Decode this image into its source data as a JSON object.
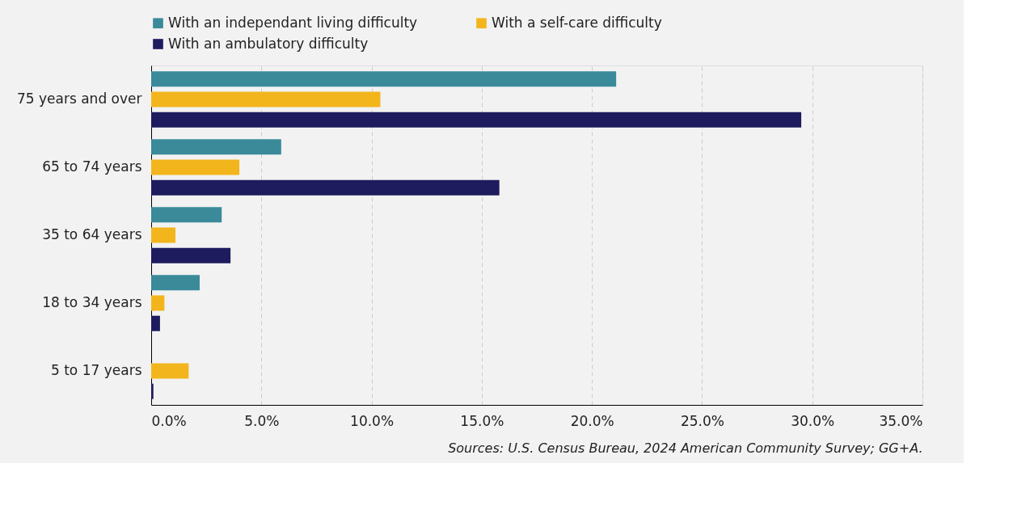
{
  "chart_data": {
    "type": "bar",
    "orientation": "horizontal",
    "categories": [
      "75 years and over",
      "65 to 74 years",
      "35 to 64 years",
      "18 to 34 years",
      "5 to 17 years"
    ],
    "series": [
      {
        "name": "With an independant living difficulty",
        "color": "#3a8a9a",
        "values": [
          21.1,
          5.9,
          3.2,
          2.2,
          null
        ]
      },
      {
        "name": "With a self-care difficulty",
        "color": "#f2b51c",
        "values": [
          10.4,
          4.0,
          1.1,
          0.6,
          1.7
        ]
      },
      {
        "name": "With an ambulatory difficulty",
        "color": "#1e1b5e",
        "values": [
          29.5,
          15.8,
          3.6,
          0.4,
          0.1
        ]
      }
    ],
    "xlim": [
      0,
      35
    ],
    "xticks": [
      {
        "value": 0,
        "label": "0.0%"
      },
      {
        "value": 5,
        "label": "5.0%"
      },
      {
        "value": 10,
        "label": "10.0%"
      },
      {
        "value": 15,
        "label": "15.0%"
      },
      {
        "value": 20,
        "label": "20.0%"
      },
      {
        "value": 25,
        "label": "25.0%"
      },
      {
        "value": 30,
        "label": "30.0%"
      },
      {
        "value": 35,
        "label": "35.0%"
      }
    ],
    "grid": "x",
    "legend": "top",
    "annotations": [
      "Sources: U.S. Census Bureau, 2024 American Community Survey; GG+A."
    ]
  }
}
